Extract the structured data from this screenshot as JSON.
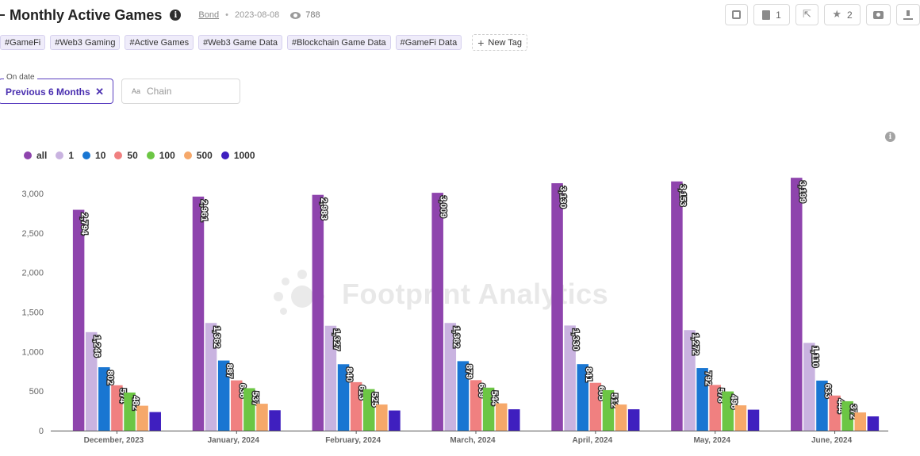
{
  "header": {
    "title": "Monthly Active Games",
    "author": "Bond",
    "date": "2023-08-08",
    "views": "788"
  },
  "toolbar": {
    "copies_count": "1",
    "stars_count": "2"
  },
  "tags": [
    "#GameFi",
    "#Web3 Gaming",
    "#Active Games",
    "#Web3 Game Data",
    "#Blockchain Game Data",
    "#GameFi Data"
  ],
  "new_tag_label": "New Tag",
  "filters": {
    "date_label": "On date",
    "date_value": "Previous 6 Months",
    "chain_prefix": "Aa",
    "chain_placeholder": "Chain"
  },
  "watermark": "Footprint Analytics",
  "chart_data": {
    "type": "bar",
    "categories": [
      "December, 2023",
      "January, 2024",
      "February, 2024",
      "March, 2024",
      "April, 2024",
      "May, 2024",
      "June, 2024"
    ],
    "series": [
      {
        "name": "all",
        "color": "#8e44ad",
        "values": [
          2794,
          2961,
          2983,
          3009,
          3130,
          3153,
          3199
        ],
        "labeled": true
      },
      {
        "name": "1",
        "color": "#c9b3e0",
        "values": [
          1246,
          1362,
          1327,
          1362,
          1330,
          1272,
          1110
        ],
        "labeled": true
      },
      {
        "name": "10",
        "color": "#1976d2",
        "values": [
          802,
          887,
          840,
          879,
          841,
          792,
          633
        ],
        "labeled": true
      },
      {
        "name": "50",
        "color": "#f08080",
        "values": [
          574,
          636,
          613,
          639,
          605,
          578,
          444
        ],
        "labeled": true
      },
      {
        "name": "100",
        "color": "#6cc644",
        "values": [
          482,
          537,
          525,
          544,
          512,
          496,
          372
        ],
        "labeled": true
      },
      {
        "name": "500",
        "color": "#f6a86a",
        "values": [
          315,
          340,
          330,
          345,
          330,
          320,
          230
        ],
        "labeled": false
      },
      {
        "name": "1000",
        "color": "#3f1fbf",
        "values": [
          235,
          258,
          255,
          270,
          270,
          265,
          180
        ],
        "labeled": false
      }
    ],
    "yticks": [
      0,
      500,
      1000,
      1500,
      2000,
      2500,
      3000
    ],
    "ylim": [
      0,
      3200
    ],
    "legend_position": "top-left",
    "grid": false
  }
}
